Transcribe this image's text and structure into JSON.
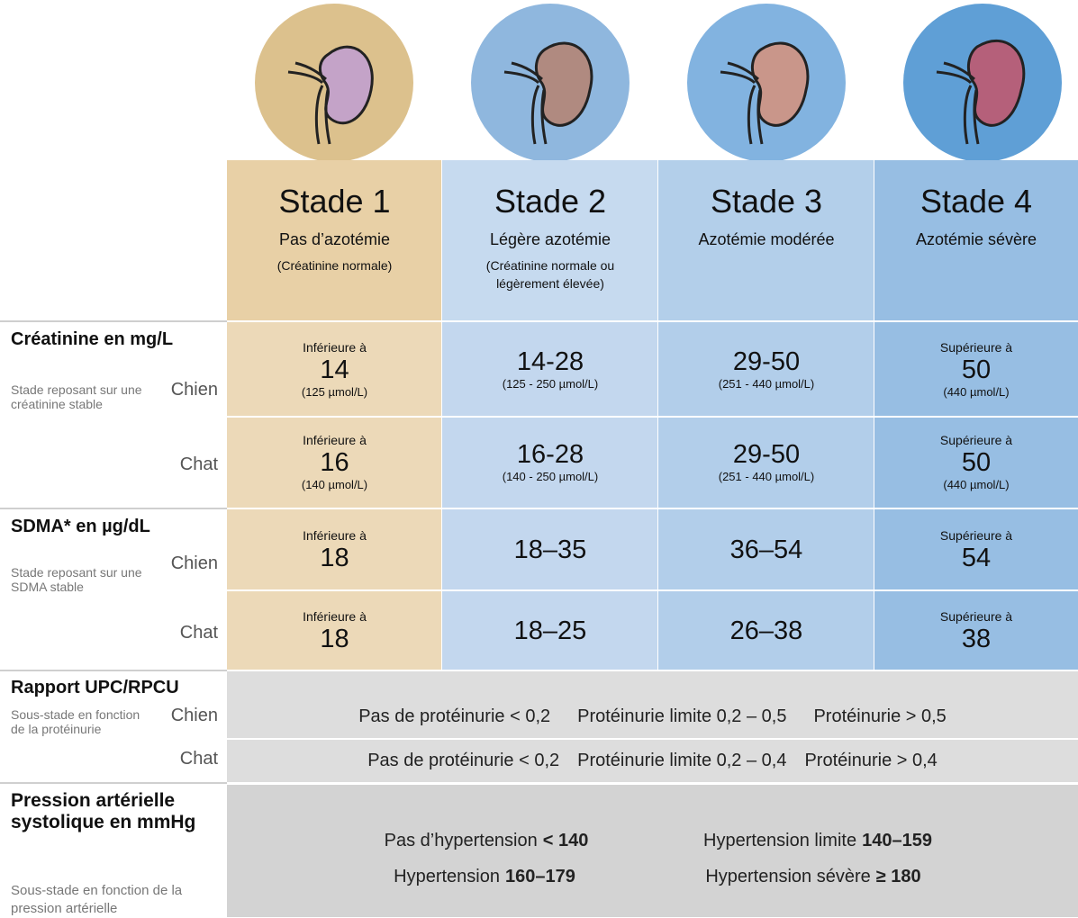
{
  "stages": [
    {
      "title": "Stade 1",
      "subtitle": "Pas d’azotémie",
      "note": "(Créatinine normale)"
    },
    {
      "title": "Stade 2",
      "subtitle": "Légère azotémie",
      "note": "(Créatinine normale ou légèrement élevée)"
    },
    {
      "title": "Stade 3",
      "subtitle": "Azotémie modérée"
    },
    {
      "title": "Stade 4",
      "subtitle": "Azotémie sévère"
    }
  ],
  "creatinine": {
    "label": "Créatinine en mg/L",
    "description": "Stade reposant sur une créatinine stable",
    "rows": [
      {
        "species": "Chien",
        "cells": [
          {
            "prefix": "Inférieure à",
            "value": "14",
            "unit": "(125 µmol/L)"
          },
          {
            "value": "14-28",
            "unit": "(125 - 250 µmol/L)"
          },
          {
            "value": "29-50",
            "unit": "(251 - 440 µmol/L)"
          },
          {
            "prefix": "Supérieure à",
            "value": "50",
            "unit": "(440 µmol/L)"
          }
        ]
      },
      {
        "species": "Chat",
        "cells": [
          {
            "prefix": "Inférieure à",
            "value": "16",
            "unit": "(140 µmol/L)"
          },
          {
            "value": "16-28",
            "unit": "(140 - 250 µmol/L)"
          },
          {
            "value": "29-50",
            "unit": "(251 - 440 µmol/L)"
          },
          {
            "prefix": "Supérieure à",
            "value": "50",
            "unit": "(440 µmol/L)"
          }
        ]
      }
    ]
  },
  "sdma": {
    "label": "SDMA* en µg/dL",
    "description": "Stade reposant sur une SDMA stable",
    "rows": [
      {
        "species": "Chien",
        "cells": [
          {
            "prefix": "Inférieure à",
            "value": "18"
          },
          {
            "value": "18–35"
          },
          {
            "value": "36–54"
          },
          {
            "prefix": "Supérieure à",
            "value": "54"
          }
        ]
      },
      {
        "species": "Chat",
        "cells": [
          {
            "prefix": "Inférieure à",
            "value": "18"
          },
          {
            "value": "18–25"
          },
          {
            "value": "26–38"
          },
          {
            "prefix": "Supérieure à",
            "value": "38"
          }
        ]
      }
    ]
  },
  "upc": {
    "label": "Rapport UPC/RPCU",
    "description": "Sous-stade en fonction de la protéinurie",
    "rows": [
      {
        "species": "Chien",
        "items": [
          "Pas de protéinurie < 0,2",
          "Protéinurie limite 0,2 – 0,5",
          "Protéinurie > 0,5"
        ]
      },
      {
        "species": "Chat",
        "items": [
          "Pas de protéinurie < 0,2",
          "Protéinurie limite 0,2 – 0,4",
          "Protéinurie > 0,4"
        ]
      }
    ]
  },
  "pressure": {
    "label": "Pression artérielle systolique en mmHg",
    "description": "Sous-stade en fonction de la pression artérielle",
    "items": [
      {
        "label": "Pas d’hypertension",
        "value": "< 140"
      },
      {
        "label": "Hypertension limite",
        "value": "140–159"
      },
      {
        "label": "Hypertension",
        "value": "160–179"
      },
      {
        "label": "Hypertension sévère",
        "value": "≥ 180"
      }
    ]
  }
}
